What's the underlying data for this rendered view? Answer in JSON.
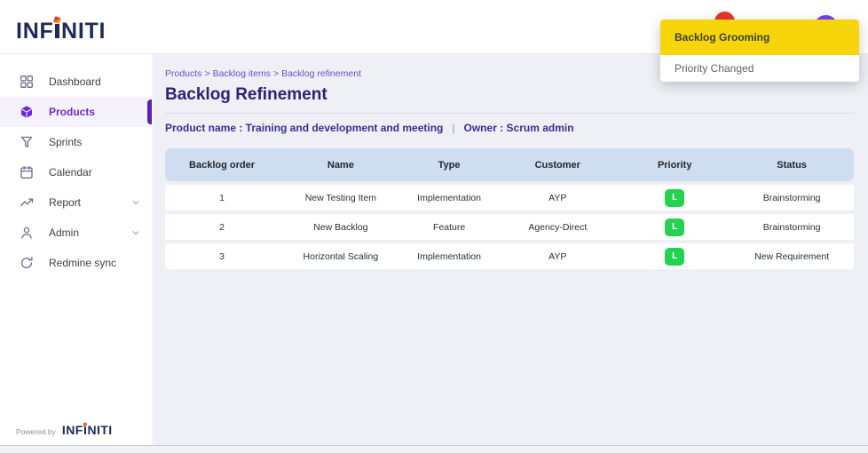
{
  "brand": {
    "name_prefix": "INF",
    "name_suffix": "NITI",
    "powered_by": "Powered by"
  },
  "notifications": [
    {
      "label": "Backlog Grooming",
      "highlighted": true
    },
    {
      "label": "Priority Changed",
      "highlighted": false
    }
  ],
  "sidebar": {
    "items": [
      {
        "label": "Dashboard",
        "icon": "grid-icon",
        "active": false,
        "expandable": false
      },
      {
        "label": "Products",
        "icon": "cube-icon",
        "active": true,
        "expandable": false
      },
      {
        "label": "Sprints",
        "icon": "funnel-icon",
        "active": false,
        "expandable": false
      },
      {
        "label": "Calendar",
        "icon": "calendar-icon",
        "active": false,
        "expandable": false
      },
      {
        "label": "Report",
        "icon": "trend-icon",
        "active": false,
        "expandable": true
      },
      {
        "label": "Admin",
        "icon": "user-icon",
        "active": false,
        "expandable": true
      },
      {
        "label": "Redmine sync",
        "icon": "sync-icon",
        "active": false,
        "expandable": false
      }
    ]
  },
  "page": {
    "breadcrumb": [
      "Products",
      "Backlog items",
      "Backlog refinement"
    ],
    "breadcrumb_separator": ">",
    "title": "Backlog Refinement",
    "product_name_label": "Product name : Training and development and meeting",
    "separator": "|",
    "owner_label": "Owner : Scrum admin"
  },
  "table": {
    "columns": [
      "Backlog order",
      "Name",
      "Type",
      "Customer",
      "Priority",
      "Status"
    ],
    "column_keys": [
      "order",
      "name",
      "type",
      "customer",
      "priority",
      "status"
    ],
    "rows": [
      {
        "order": "1",
        "name": "New Testing Item",
        "type": "Implementation",
        "customer": "AYP",
        "priority": "L",
        "status": "Brainstorming"
      },
      {
        "order": "2",
        "name": "New Backlog",
        "type": "Feature",
        "customer": "Agency-Direct",
        "priority": "L",
        "status": "Brainstorming"
      },
      {
        "order": "3",
        "name": "Horizontal Scaling",
        "type": "Implementation",
        "customer": "AYP",
        "priority": "L",
        "status": "New Requirement"
      }
    ]
  },
  "colors": {
    "accent_purple": "#6d28d9",
    "priority_green": "#23d250",
    "highlight_yellow": "#f6d60b",
    "badge_red": "#e8332a",
    "avatar_purple": "#7b3ff2",
    "logo_navy": "#1e2a5a"
  }
}
